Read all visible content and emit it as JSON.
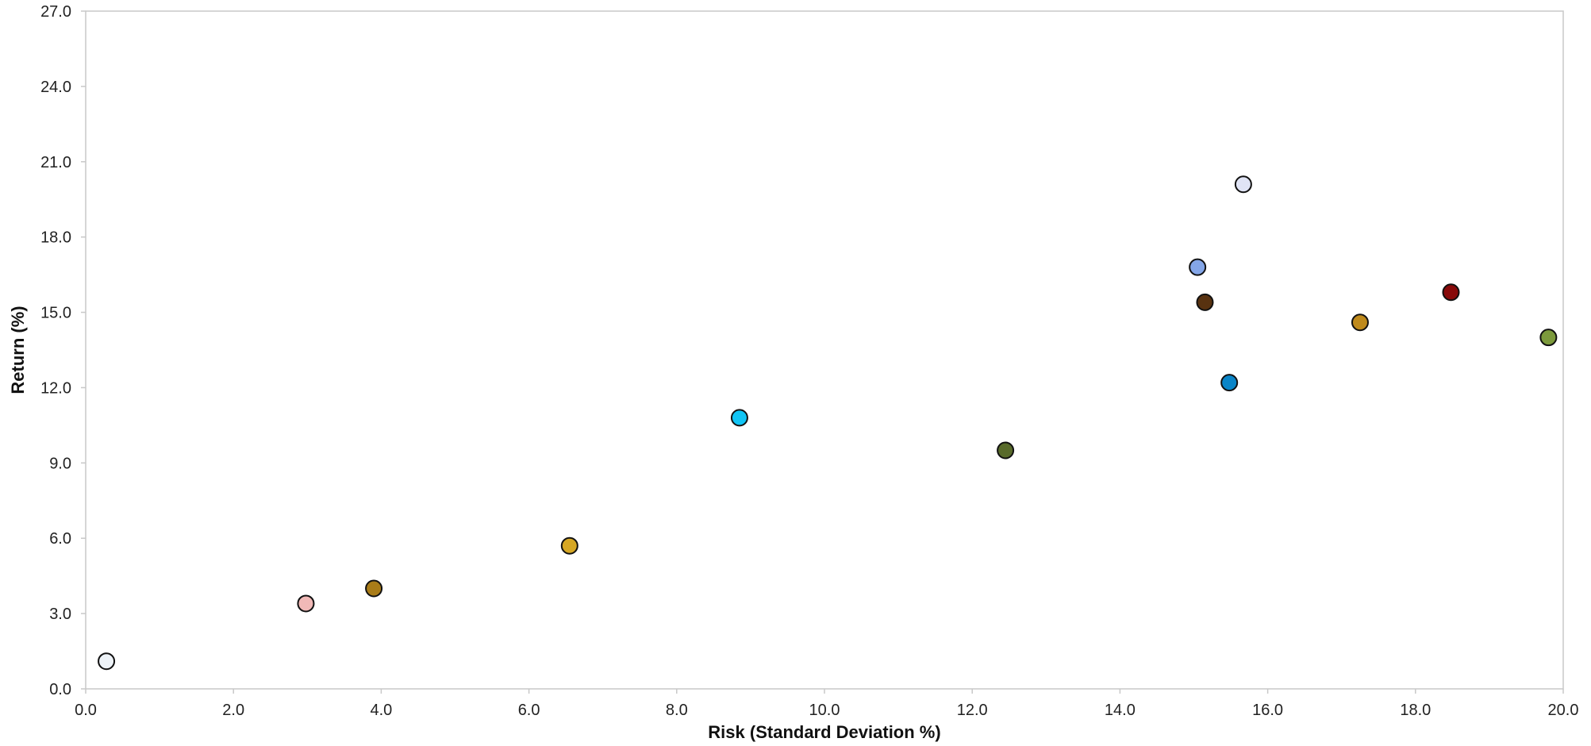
{
  "chart_data": {
    "type": "scatter",
    "title": "",
    "xlabel": "Risk (Standard Deviation %)",
    "ylabel": "Return (%)",
    "xlim": [
      0,
      20
    ],
    "ylim": [
      0,
      27
    ],
    "x_ticks": [
      "0.0",
      "2.0",
      "4.0",
      "6.0",
      "8.0",
      "10.0",
      "12.0",
      "14.0",
      "16.0",
      "18.0",
      "20.0"
    ],
    "y_ticks": [
      "0.0",
      "3.0",
      "6.0",
      "9.0",
      "12.0",
      "15.0",
      "18.0",
      "21.0",
      "24.0",
      "27.0"
    ],
    "grid": false,
    "legend": "none",
    "points": [
      {
        "x": 0.28,
        "y": 1.1,
        "color": "#eef3f8"
      },
      {
        "x": 2.98,
        "y": 3.4,
        "color": "#f1b9b7"
      },
      {
        "x": 3.9,
        "y": 4.0,
        "color": "#a97c18"
      },
      {
        "x": 6.55,
        "y": 5.7,
        "color": "#d6a724"
      },
      {
        "x": 8.85,
        "y": 10.8,
        "color": "#11c5f5"
      },
      {
        "x": 12.45,
        "y": 9.5,
        "color": "#586a2a"
      },
      {
        "x": 15.05,
        "y": 16.8,
        "color": "#84a6e8"
      },
      {
        "x": 15.15,
        "y": 15.4,
        "color": "#583210"
      },
      {
        "x": 15.48,
        "y": 12.2,
        "color": "#0a85c8"
      },
      {
        "x": 15.67,
        "y": 20.1,
        "color": "#e0e4f5"
      },
      {
        "x": 17.25,
        "y": 14.6,
        "color": "#bf8a1c"
      },
      {
        "x": 18.48,
        "y": 15.8,
        "color": "#880a0a"
      },
      {
        "x": 19.8,
        "y": 14.0,
        "color": "#7c9a3c"
      }
    ]
  }
}
